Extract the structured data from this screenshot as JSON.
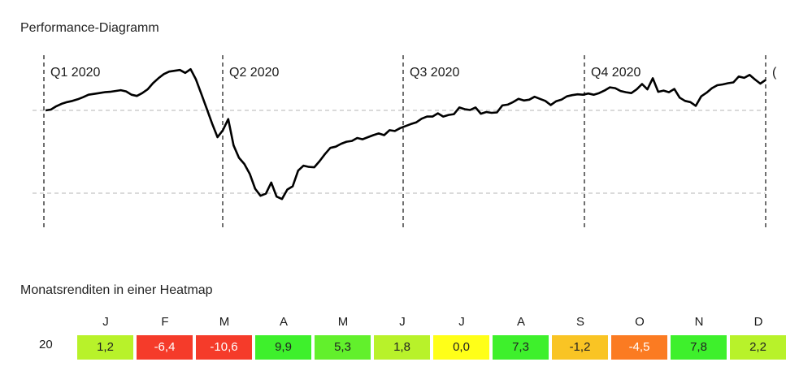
{
  "performance_title": "Performance-Diagramm",
  "heatmap_title": "Monatsrenditen in einer Heatmap",
  "chart_data": [
    {
      "type": "line",
      "title": "Performance-Diagramm",
      "quarter_labels": [
        "Q1 2020",
        "Q2 2020",
        "Q3 2020",
        "Q4 2020",
        "("
      ],
      "grid": true,
      "reference_lines": 2,
      "series": [
        {
          "values": [
            100.0,
            100.2,
            101.0,
            101.6,
            102.0,
            102.3,
            102.7,
            103.2,
            103.8,
            104.0,
            104.2,
            104.4,
            104.5,
            104.7,
            104.9,
            104.6,
            103.8,
            103.5,
            104.2,
            105.1,
            106.6,
            107.8,
            108.8,
            109.4,
            109.6,
            109.8,
            109.1,
            110.0,
            107.5,
            104.0,
            100.4,
            96.8,
            93.5,
            95.2,
            97.9,
            91.5,
            88.5,
            87.0,
            84.6,
            81.0,
            79.3,
            79.8,
            82.5,
            79.1,
            78.5,
            80.8,
            81.6,
            85.4,
            86.6,
            86.3,
            86.2,
            87.7,
            89.4,
            90.9,
            91.2,
            91.9,
            92.4,
            92.6,
            93.3,
            93.0,
            93.5,
            94.0,
            94.4,
            94.0,
            95.2,
            95.0,
            95.7,
            96.2,
            96.7,
            97.1,
            98.0,
            98.5,
            98.5,
            99.3,
            98.5,
            98.9,
            99.1,
            100.7,
            100.3,
            100.1,
            100.7,
            99.2,
            99.6,
            99.4,
            99.5,
            101.2,
            101.4,
            102.0,
            102.8,
            102.4,
            102.6,
            103.3,
            102.8,
            102.3,
            101.3,
            102.2,
            102.6,
            103.4,
            103.7,
            103.9,
            103.8,
            104.1,
            103.8,
            104.2,
            104.8,
            105.6,
            105.4,
            104.7,
            104.4,
            104.2,
            105.1,
            106.4,
            105.1,
            107.8,
            104.5,
            104.8,
            104.4,
            105.2,
            103.1,
            102.3,
            102.0,
            101.1,
            103.4,
            104.3,
            105.4,
            106.1,
            106.3,
            106.6,
            106.8,
            108.2,
            107.9,
            108.6,
            107.5,
            106.5,
            107.4
          ]
        }
      ]
    },
    {
      "type": "heatmap",
      "title": "Monatsrenditen in einer Heatmap",
      "columns": [
        "J",
        "F",
        "M",
        "A",
        "M",
        "J",
        "J",
        "A",
        "S",
        "O",
        "N",
        "D"
      ],
      "rows": [
        "20"
      ],
      "values": [
        [
          1.2,
          -6.4,
          -10.6,
          9.9,
          5.3,
          1.8,
          0.0,
          7.3,
          -1.2,
          -4.5,
          7.8,
          2.2
        ]
      ],
      "labels": [
        [
          "1,2",
          "-6,4",
          "-10,6",
          "9,9",
          "5,3",
          "1,8",
          "0,0",
          "7,3",
          "-1,2",
          "-4,5",
          "7,8",
          "2,2"
        ]
      ],
      "colors": [
        "#b8f22a",
        "#f53b2a",
        "#f53b2a",
        "#3ef02c",
        "#62f02c",
        "#b8f22a",
        "#ffff18",
        "#3ef02c",
        "#f9c424",
        "#fb7b22",
        "#3ef02c",
        "#b8f22a"
      ],
      "text_colors": [
        "#222222",
        "#ffffff",
        "#ffffff",
        "#222222",
        "#222222",
        "#222222",
        "#222222",
        "#222222",
        "#222222",
        "#ffffff",
        "#222222",
        "#222222"
      ]
    }
  ]
}
